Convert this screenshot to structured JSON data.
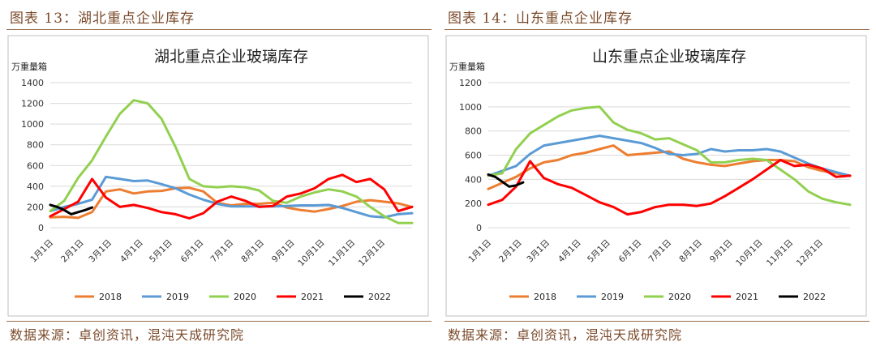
{
  "panels": [
    {
      "fig_label": "图表 13：湖北重点企业库存",
      "source": "数据来源：卓创资讯，混沌天成研究院"
    },
    {
      "fig_label": "图表 14：山东重点企业库存",
      "source": "数据来源：卓创资讯，混沌天成研究院"
    }
  ],
  "chart_data": [
    {
      "type": "line",
      "title": "湖北重点企业玻璃库存",
      "ylabel": "万重量箱",
      "xlabel": "",
      "ylim": [
        0,
        1400
      ],
      "yticks": [
        0,
        200,
        400,
        600,
        800,
        1000,
        1200,
        1400
      ],
      "xlim": [
        1,
        53
      ],
      "xticks": [
        {
          "label": "1月1日",
          "week": 1
        },
        {
          "label": "2月1日",
          "week": 5.4
        },
        {
          "label": "3月1日",
          "week": 9.4
        },
        {
          "label": "4月1日",
          "week": 13.9
        },
        {
          "label": "5月1日",
          "week": 18.1
        },
        {
          "label": "6月1日",
          "week": 22.6
        },
        {
          "label": "7月1日",
          "week": 26.9
        },
        {
          "label": "8月1日",
          "week": 31.3
        },
        {
          "label": "9月1日",
          "week": 35.7
        },
        {
          "label": "10月1日",
          "week": 40
        },
        {
          "label": "11月1日",
          "week": 44.4
        },
        {
          "label": "12月1日",
          "week": 48.7
        }
      ],
      "grid": true,
      "legend": "bottom",
      "colors": {
        "2018": "#ed7d31",
        "2019": "#5b9bd5",
        "2020": "#92d050",
        "2021": "#ff0000",
        "2022": "#000000"
      },
      "series": [
        {
          "name": "2018",
          "x": [
            1,
            3,
            5,
            7,
            9,
            11,
            13,
            15,
            17,
            19,
            21,
            23,
            25,
            27,
            29,
            31,
            33,
            35,
            37,
            39,
            41,
            43,
            45,
            47,
            49,
            51,
            53
          ],
          "values": [
            100,
            105,
            95,
            150,
            350,
            370,
            330,
            350,
            355,
            380,
            385,
            350,
            240,
            215,
            230,
            230,
            240,
            195,
            170,
            155,
            180,
            210,
            250,
            265,
            250,
            235,
            200
          ]
        },
        {
          "name": "2019",
          "x": [
            1,
            3,
            5,
            7,
            9,
            11,
            13,
            15,
            17,
            19,
            21,
            23,
            25,
            27,
            29,
            31,
            33,
            35,
            37,
            39,
            41,
            43,
            45,
            47,
            49,
            51,
            53
          ],
          "values": [
            160,
            200,
            230,
            270,
            490,
            470,
            450,
            455,
            420,
            380,
            320,
            270,
            230,
            205,
            205,
            205,
            205,
            210,
            215,
            215,
            220,
            190,
            150,
            110,
            100,
            130,
            140
          ]
        },
        {
          "name": "2020",
          "x": [
            1,
            3,
            5,
            7,
            9,
            11,
            13,
            15,
            17,
            19,
            21,
            23,
            25,
            27,
            29,
            31,
            33,
            35,
            37,
            39,
            41,
            43,
            45,
            47,
            49,
            51,
            53
          ],
          "values": [
            160,
            260,
            480,
            650,
            880,
            1100,
            1230,
            1200,
            1050,
            780,
            470,
            400,
            390,
            400,
            390,
            360,
            260,
            240,
            300,
            340,
            370,
            350,
            300,
            200,
            110,
            45,
            45
          ]
        },
        {
          "name": "2021",
          "x": [
            1,
            3,
            5,
            7,
            9,
            11,
            13,
            15,
            17,
            19,
            21,
            23,
            25,
            27,
            29,
            31,
            33,
            35,
            37,
            39,
            41,
            43,
            45,
            47,
            49,
            51,
            53
          ],
          "values": [
            110,
            180,
            250,
            470,
            290,
            200,
            220,
            190,
            150,
            130,
            90,
            140,
            250,
            300,
            260,
            200,
            210,
            300,
            330,
            380,
            470,
            510,
            440,
            470,
            370,
            160,
            200
          ]
        },
        {
          "name": "2022",
          "x": [
            1,
            2,
            3,
            4,
            5,
            6,
            7
          ],
          "values": [
            220,
            200,
            170,
            130,
            150,
            170,
            195
          ]
        }
      ]
    },
    {
      "type": "line",
      "title": "山东重点企业玻璃库存",
      "ylabel": "万重量箱",
      "xlabel": "",
      "ylim": [
        0,
        1200
      ],
      "yticks": [
        0,
        200,
        400,
        600,
        800,
        1000,
        1200
      ],
      "xlim": [
        1,
        53
      ],
      "xticks": [
        {
          "label": "1月1日",
          "week": 1
        },
        {
          "label": "2月1日",
          "week": 5.4
        },
        {
          "label": "3月1日",
          "week": 9.4
        },
        {
          "label": "4月1日",
          "week": 13.9
        },
        {
          "label": "5月1日",
          "week": 18.1
        },
        {
          "label": "6月1日",
          "week": 22.6
        },
        {
          "label": "7月1日",
          "week": 26.9
        },
        {
          "label": "8月1日",
          "week": 31.3
        },
        {
          "label": "9月1日",
          "week": 35.7
        },
        {
          "label": "10月1日",
          "week": 40
        },
        {
          "label": "11月1日",
          "week": 44.4
        },
        {
          "label": "12月1日",
          "week": 48.7
        }
      ],
      "grid": true,
      "legend": "bottom",
      "colors": {
        "2018": "#ed7d31",
        "2019": "#5b9bd5",
        "2020": "#92d050",
        "2021": "#ff0000",
        "2022": "#000000"
      },
      "series": [
        {
          "name": "2018",
          "x": [
            1,
            3,
            5,
            7,
            9,
            11,
            13,
            15,
            17,
            19,
            21,
            23,
            25,
            27,
            29,
            31,
            33,
            35,
            37,
            39,
            41,
            43,
            45,
            47,
            49,
            51,
            53
          ],
          "values": [
            320,
            370,
            420,
            490,
            540,
            560,
            600,
            620,
            650,
            680,
            600,
            610,
            620,
            630,
            570,
            540,
            520,
            510,
            530,
            550,
            560,
            560,
            550,
            500,
            470,
            450,
            430
          ]
        },
        {
          "name": "2019",
          "x": [
            1,
            3,
            5,
            7,
            9,
            11,
            13,
            15,
            17,
            19,
            21,
            23,
            25,
            27,
            29,
            31,
            33,
            35,
            37,
            39,
            41,
            43,
            45,
            47,
            49,
            51,
            53
          ],
          "values": [
            430,
            470,
            510,
            610,
            680,
            700,
            720,
            740,
            760,
            740,
            720,
            700,
            660,
            610,
            600,
            610,
            650,
            630,
            640,
            640,
            650,
            630,
            580,
            530,
            490,
            460,
            430
          ]
        },
        {
          "name": "2020",
          "x": [
            1,
            3,
            5,
            7,
            9,
            11,
            13,
            15,
            17,
            19,
            21,
            23,
            25,
            27,
            29,
            31,
            33,
            35,
            37,
            39,
            41,
            43,
            45,
            47,
            49,
            51,
            53
          ],
          "values": [
            430,
            450,
            650,
            780,
            850,
            920,
            970,
            990,
            1000,
            870,
            810,
            780,
            730,
            740,
            690,
            640,
            540,
            540,
            560,
            570,
            560,
            480,
            400,
            300,
            240,
            210,
            190
          ]
        },
        {
          "name": "2021",
          "x": [
            1,
            3,
            5,
            7,
            9,
            11,
            13,
            15,
            17,
            19,
            21,
            23,
            25,
            27,
            29,
            31,
            33,
            35,
            37,
            39,
            41,
            43,
            45,
            47,
            49,
            51,
            53
          ],
          "values": [
            190,
            230,
            340,
            550,
            410,
            360,
            330,
            270,
            210,
            170,
            110,
            130,
            170,
            190,
            190,
            180,
            200,
            260,
            330,
            400,
            480,
            560,
            510,
            520,
            490,
            420,
            430
          ]
        },
        {
          "name": "2022",
          "x": [
            1,
            2,
            3,
            4,
            5,
            6
          ],
          "values": [
            440,
            420,
            380,
            340,
            350,
            375
          ]
        }
      ]
    }
  ]
}
